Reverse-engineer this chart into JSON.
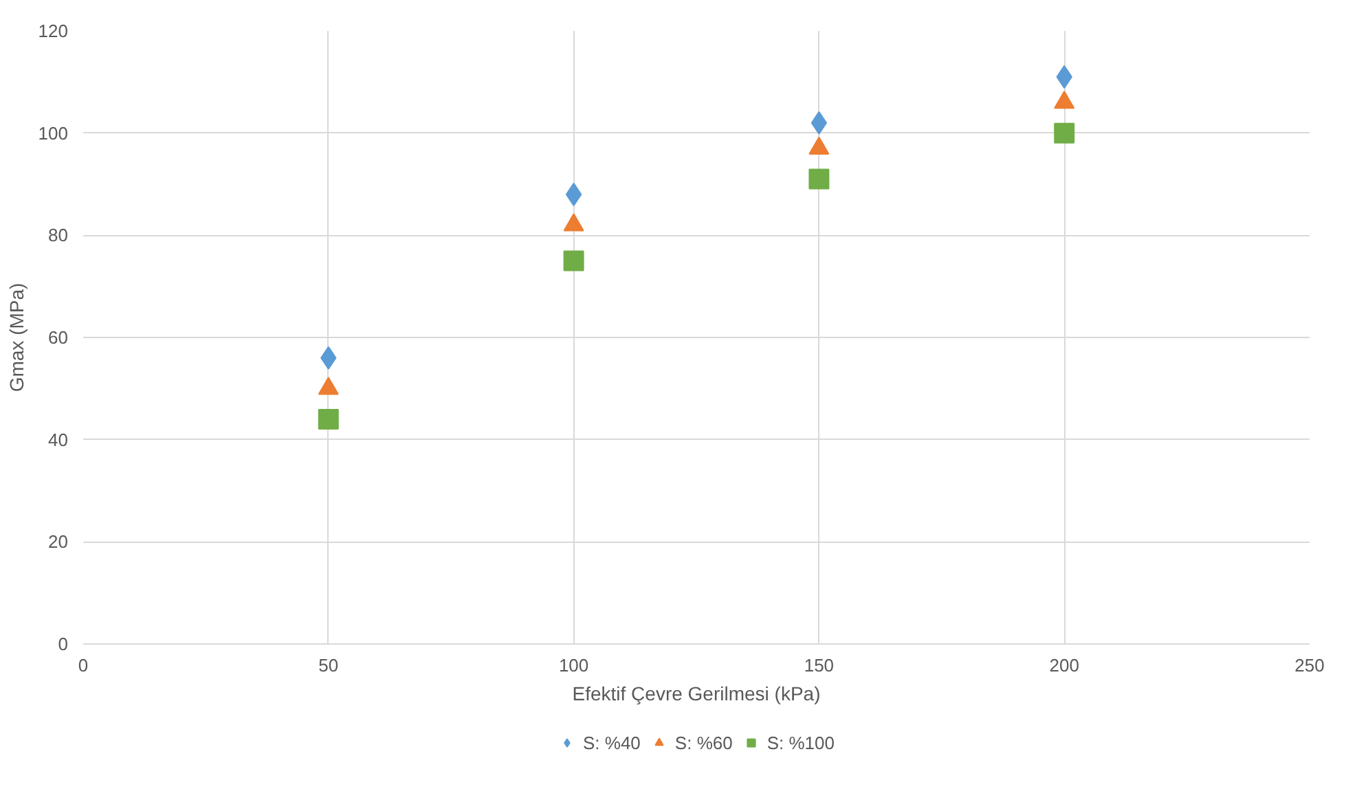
{
  "chart_data": {
    "type": "scatter",
    "xlabel": "Efektif Çevre Gerilmesi (kPa)",
    "ylabel": "Gmax (MPa)",
    "x": [
      50,
      100,
      150,
      200
    ],
    "series": [
      {
        "name": "S: %40",
        "color": "#5b9bd5",
        "marker": "diamond",
        "values": [
          56,
          88,
          102,
          111
        ]
      },
      {
        "name": "S: %60",
        "color": "#ed7d31",
        "marker": "triangle",
        "values": [
          50,
          82,
          97,
          106
        ]
      },
      {
        "name": "S: %100",
        "color": "#70ad47",
        "marker": "square",
        "values": [
          44,
          75,
          91,
          100
        ]
      }
    ],
    "xlim": [
      0,
      250
    ],
    "xticks": [
      0,
      50,
      100,
      150,
      200,
      250
    ],
    "ylim": [
      0,
      120
    ],
    "yticks": [
      0,
      20,
      40,
      60,
      80,
      100,
      120
    ],
    "grid": true,
    "legend": "bottom"
  }
}
